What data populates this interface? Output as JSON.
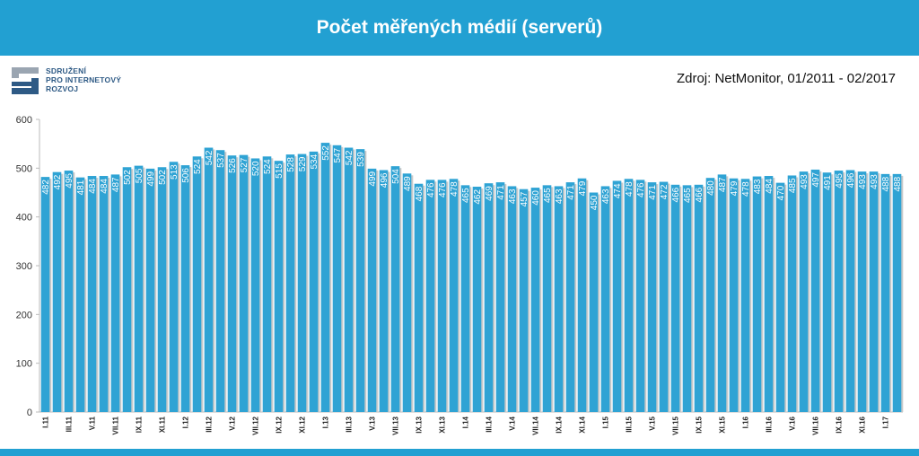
{
  "header": {
    "title": "Počet měřených médií (serverů)"
  },
  "logo": {
    "line1": "SDRUŽENÍ",
    "line2": "PRO INTERNETOVÝ",
    "line3": "ROZVOJ"
  },
  "source": "Zdroj: NetMonitor, 01/2011 - 02/2017",
  "colors": {
    "bar": "#2fa3d4",
    "banner": "#22a0d2",
    "logo_blue": "#2e5a85",
    "logo_grey": "#9aa5b1"
  },
  "chart_data": {
    "type": "bar",
    "title": "Počet měřených médií (serverů)",
    "ylim": [
      0,
      600
    ],
    "yticks": [
      0,
      100,
      200,
      300,
      400,
      500,
      600
    ],
    "grid": false,
    "xtick_labels": [
      "I.11",
      "III.11",
      "V.11",
      "VII.11",
      "IX.11",
      "XI.11",
      "I.12",
      "III.12",
      "V.12",
      "VII.12",
      "IX.12",
      "XI.12",
      "I.13",
      "III.13",
      "V.13",
      "VII.13",
      "IX.13",
      "XI.13",
      "I.14",
      "III.14",
      "V.14",
      "VII.14",
      "IX.14",
      "XI.14",
      "I.15",
      "III.15",
      "V.15",
      "VII.15",
      "IX.15",
      "XI.15",
      "I.16",
      "III.16",
      "V.16",
      "VII.16",
      "IX.16",
      "XI.16",
      "I.17"
    ],
    "values": [
      482,
      492,
      495,
      481,
      484,
      484,
      487,
      502,
      505,
      499,
      502,
      513,
      506,
      524,
      542,
      537,
      526,
      527,
      520,
      524,
      515,
      528,
      529,
      534,
      552,
      547,
      542,
      539,
      499,
      496,
      504,
      489,
      468,
      476,
      476,
      478,
      465,
      462,
      469,
      471,
      463,
      457,
      460,
      465,
      463,
      471,
      479,
      450,
      463,
      474,
      478,
      476,
      471,
      472,
      466,
      465,
      466,
      480,
      487,
      479,
      478,
      483,
      484,
      470,
      485,
      493,
      497,
      491,
      495,
      496,
      493,
      493,
      488,
      488
    ]
  }
}
